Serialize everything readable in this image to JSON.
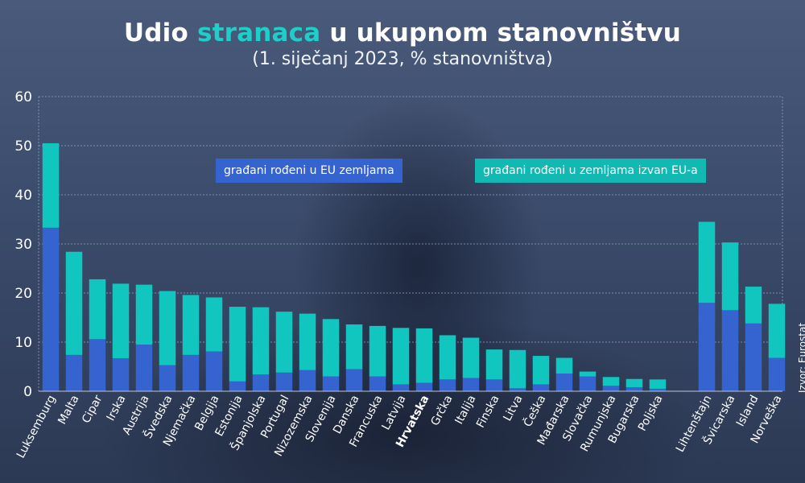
{
  "title": {
    "part1": "Udio ",
    "accent": "stranaca",
    "part2": " u ukupnom stanovništvu"
  },
  "subtitle": "(1. siječanj 2023, % stanovništva)",
  "source": "Izvor: Eurostat",
  "colors": {
    "eu": "#3563cf",
    "non_eu": "#12c6c0",
    "grid": "#8fa0bd",
    "accent": "#1ecfc9"
  },
  "chart_data": {
    "type": "bar",
    "stacked": true,
    "ylim": [
      0,
      60
    ],
    "yticks": [
      0,
      10,
      20,
      30,
      40,
      50,
      60
    ],
    "grid": true,
    "legend_position": "top-center",
    "categories": [
      "Luksemburg",
      "Malta",
      "Cipar",
      "Irska",
      "Austrija",
      "Švedska",
      "Njemačka",
      "Belgija",
      "Estonija",
      "Španjolska",
      "Portugal",
      "Nizozemska",
      "Slovenija",
      "Danska",
      "Francuska",
      "Latvija",
      "Hrvatska",
      "Grčka",
      "Italija",
      "Finska",
      "Litva",
      "Češka",
      "Mađarska",
      "Slovačka",
      "Rumunjska",
      "Bugarska",
      "Poljska",
      "Lihtenštajn",
      "Švicarska",
      "Island",
      "Norveška"
    ],
    "highlight": "Hrvatska",
    "group_gap_before": "Lihtenštajn",
    "series": [
      {
        "name": "građani rođeni u EU zemljama",
        "values": [
          33.3,
          7.4,
          10.6,
          6.7,
          9.5,
          5.3,
          7.4,
          8.1,
          2.0,
          3.4,
          3.8,
          4.3,
          3.0,
          4.5,
          3.0,
          1.4,
          1.7,
          2.4,
          2.7,
          2.4,
          0.6,
          1.4,
          3.6,
          3.0,
          1.1,
          0.8,
          0.5,
          18.0,
          16.5,
          13.8,
          6.8
        ]
      },
      {
        "name": "građani rođeni u zemljama izvan EU-a",
        "values": [
          17.2,
          21.0,
          12.2,
          15.2,
          12.2,
          15.1,
          12.2,
          11.0,
          15.2,
          13.7,
          12.4,
          11.5,
          11.7,
          9.1,
          10.3,
          11.5,
          11.1,
          9.0,
          8.2,
          6.1,
          7.8,
          5.8,
          3.2,
          1.0,
          1.8,
          1.7,
          1.9,
          16.5,
          13.8,
          7.5,
          11.0
        ]
      }
    ]
  }
}
